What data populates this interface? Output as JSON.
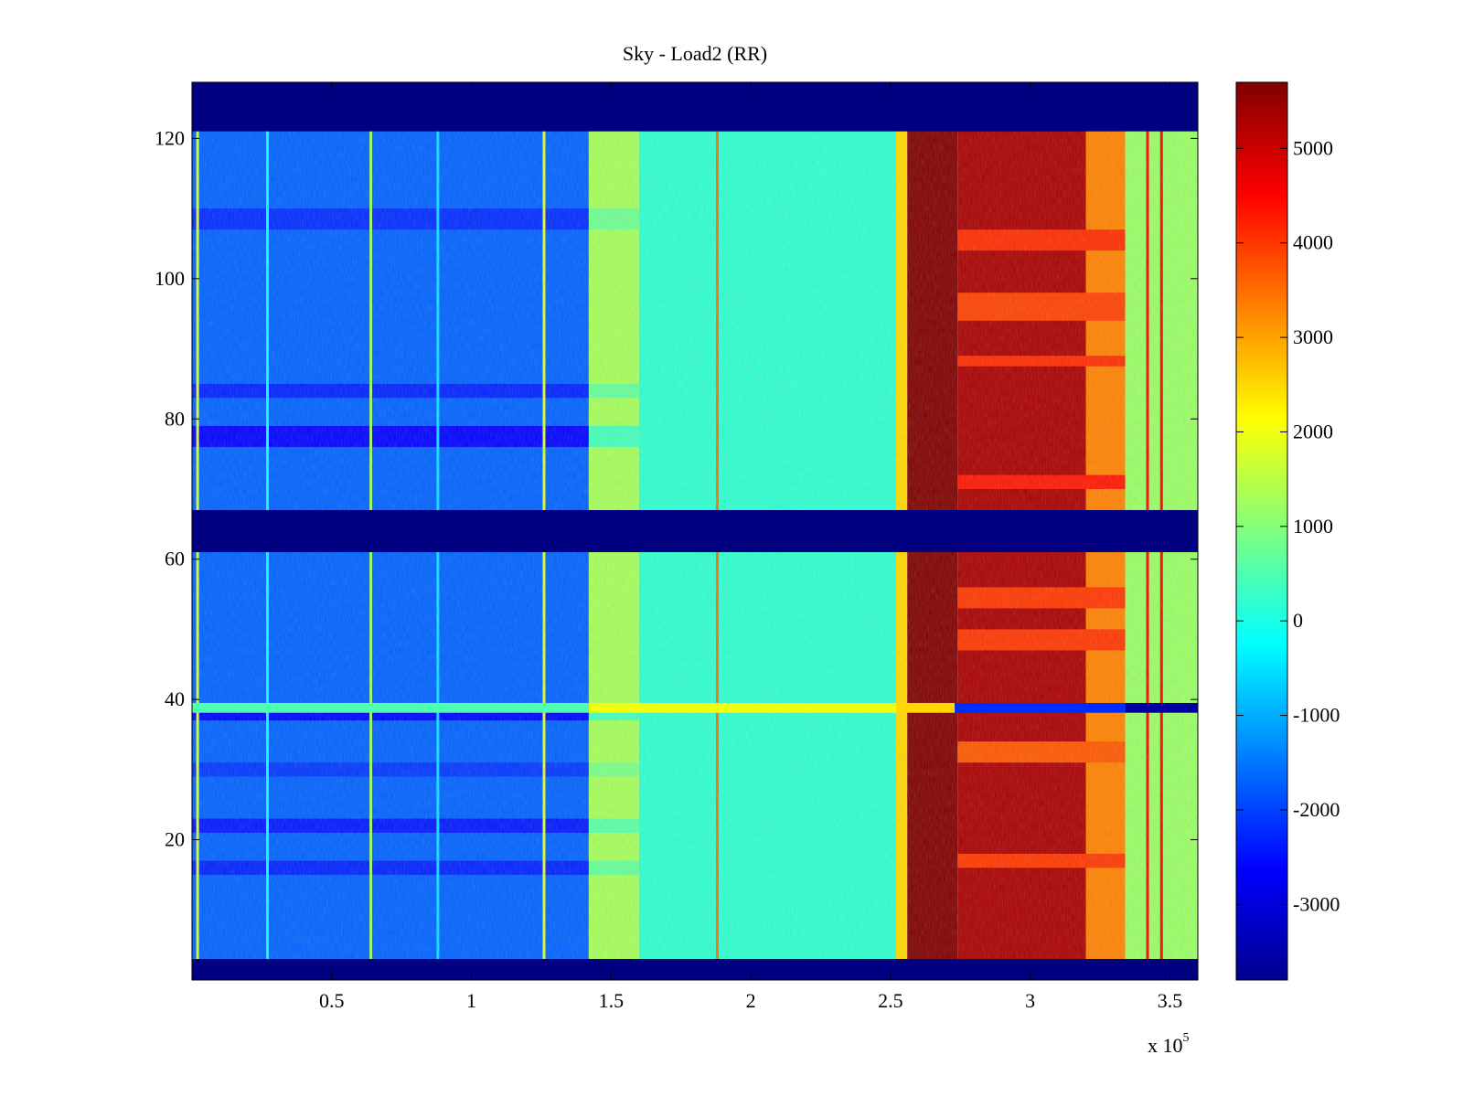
{
  "chart_data": {
    "type": "heatmap",
    "title": "Sky - Load2 (RR)",
    "xlabel": "",
    "ylabel": "",
    "x_exponent_label": "x 10",
    "x_exponent_power": "5",
    "xlim": [
      0.0,
      3.6
    ],
    "ylim": [
      0,
      128
    ],
    "x_ticks": [
      0.5,
      1,
      1.5,
      2,
      2.5,
      3,
      3.5
    ],
    "x_tick_labels": [
      "0.5",
      "1",
      "1.5",
      "2",
      "2.5",
      "3",
      "3.5"
    ],
    "y_ticks": [
      20,
      40,
      60,
      80,
      100,
      120
    ],
    "y_tick_labels": [
      "20",
      "40",
      "60",
      "80",
      "100",
      "120"
    ],
    "colorbar": {
      "colormap": "jet",
      "limits": [
        -3800,
        5700
      ],
      "ticks": [
        5000,
        4000,
        3000,
        2000,
        1000,
        0,
        -1000,
        -2000,
        -3000
      ],
      "tick_labels": [
        "5000",
        "4000",
        "3000",
        "2000",
        "1000",
        "0",
        "-1000",
        "-2000",
        "-3000"
      ]
    },
    "masked_rows": [
      [
        0,
        3
      ],
      [
        61,
        67
      ],
      [
        121,
        128
      ]
    ],
    "x_segments": [
      {
        "x0": 0.0,
        "x1": 1.42,
        "value": -1700
      },
      {
        "x0": 1.42,
        "x1": 1.6,
        "value": 1300
      },
      {
        "x0": 1.6,
        "x1": 2.52,
        "value": 200
      },
      {
        "x0": 2.52,
        "x1": 2.56,
        "value": 2500
      },
      {
        "x0": 2.56,
        "x1": 2.74,
        "value": 5700
      },
      {
        "x0": 2.74,
        "x1": 3.2,
        "value": 5300
      },
      {
        "x0": 3.2,
        "x1": 3.34,
        "value": 3300
      },
      {
        "x0": 3.34,
        "x1": 3.6,
        "value": 1200
      }
    ],
    "cool_rows": [
      {
        "y": 76,
        "h": 3,
        "delta": -900
      },
      {
        "y": 83,
        "h": 2,
        "delta": -600
      },
      {
        "y": 107,
        "h": 3,
        "delta": -500
      },
      {
        "y": 37,
        "h": 1.5,
        "delta": -900
      },
      {
        "y": 21,
        "h": 2,
        "delta": -700
      },
      {
        "y": 15,
        "h": 2,
        "delta": -600
      },
      {
        "y": 29,
        "h": 2,
        "delta": -400
      }
    ],
    "hot_rows": [
      {
        "y": 104,
        "h": 3,
        "delta": -1200
      },
      {
        "y": 94,
        "h": 4,
        "delta": -1400
      },
      {
        "y": 87.5,
        "h": 1.5,
        "delta": -1200
      },
      {
        "y": 70,
        "h": 2,
        "delta": -1000
      },
      {
        "y": 53,
        "h": 3,
        "delta": -1300
      },
      {
        "y": 47,
        "h": 3,
        "delta": -1300
      },
      {
        "y": 31,
        "h": 3,
        "delta": -1600
      },
      {
        "y": 16,
        "h": 2,
        "delta": -1300
      }
    ],
    "vertical_lines": [
      {
        "x": 0.02,
        "value": 1800
      },
      {
        "x": 0.27,
        "value": -200
      },
      {
        "x": 0.64,
        "value": 1200
      },
      {
        "x": 0.88,
        "value": -500
      },
      {
        "x": 1.26,
        "value": 1800
      },
      {
        "x": 1.88,
        "value": 3500
      },
      {
        "x": 3.42,
        "value": 4500
      },
      {
        "x": 3.47,
        "value": 4500
      }
    ],
    "anomaly_row": {
      "y": 38.8,
      "segments": [
        {
          "x0": 0.0,
          "x1": 1.42,
          "value": 500
        },
        {
          "x0": 1.42,
          "x1": 2.52,
          "value": 2000
        },
        {
          "x0": 2.52,
          "x1": 2.73,
          "value": 2500
        },
        {
          "x0": 2.73,
          "x1": 3.34,
          "value": -2200
        },
        {
          "x0": 3.34,
          "x1": 3.6,
          "value": -3500
        }
      ]
    }
  }
}
